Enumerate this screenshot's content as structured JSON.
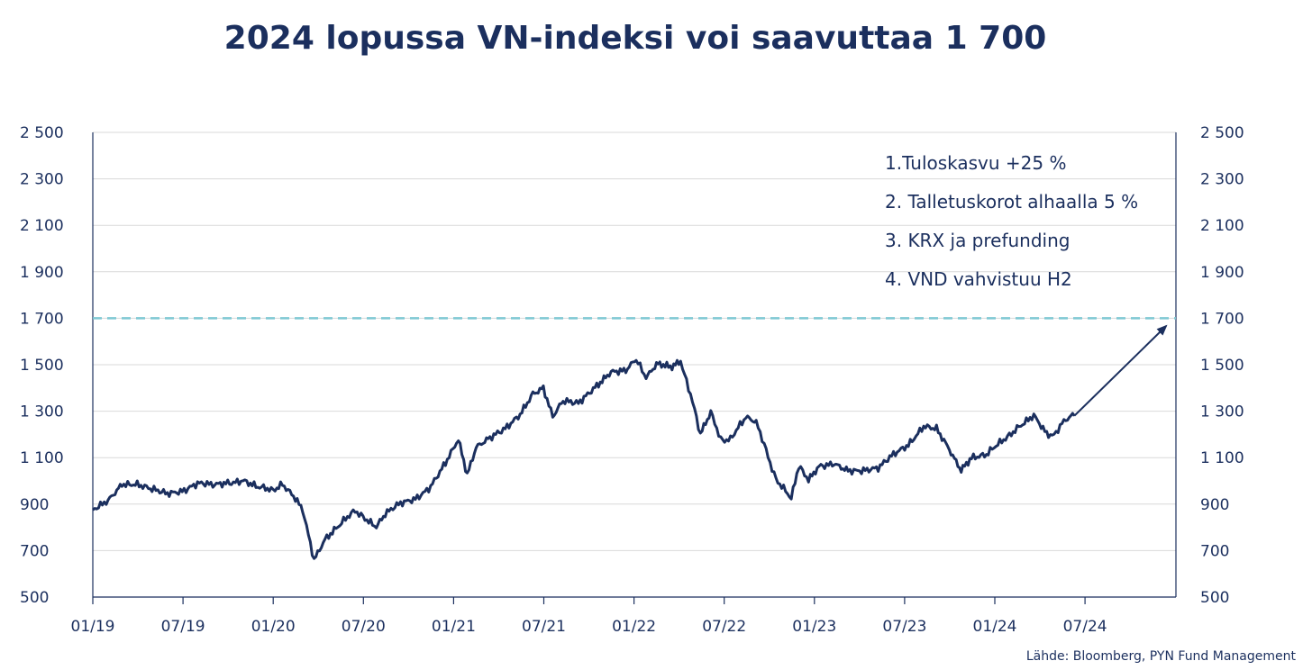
{
  "title": "2024 lopussa VN-indeksi voi saavuttaa 1 700",
  "source": "Lähde: Bloomberg, PYN Fund Management",
  "annotations": [
    "1.Tuloskasvu +25 %",
    "2. Talletuskorot alhaalla 5 %",
    "3. KRX ja prefunding",
    "4. VND vahvistuu H2"
  ],
  "colors": {
    "line": "#1b2f5e",
    "target_line": "#7ec8d3",
    "grid": "#d9d9d9"
  },
  "chart_data": {
    "type": "line",
    "title": "2024 lopussa VN-indeksi voi saavuttaa 1 700",
    "x_tick_labels": [
      "01/19",
      "07/19",
      "01/20",
      "07/20",
      "01/21",
      "07/21",
      "01/22",
      "07/22",
      "01/23",
      "07/23",
      "01/24",
      "07/24"
    ],
    "y_tick_labels": [
      "2 500",
      "2 300",
      "2 100",
      "1 900",
      "1 700",
      "1 500",
      "1 300",
      "1 100",
      "900",
      "700",
      "500"
    ],
    "ylim": [
      500,
      2500
    ],
    "xlim": [
      "2019-01-01",
      "2024-12-31"
    ],
    "grid": true,
    "series": [
      {
        "values": [
          [
            "2019-01-01",
            880
          ],
          [
            "2019-02-01",
            910
          ],
          [
            "2019-03-01",
            990
          ],
          [
            "2019-04-01",
            980
          ],
          [
            "2019-05-01",
            960
          ],
          [
            "2019-06-01",
            950
          ],
          [
            "2019-07-01",
            960
          ],
          [
            "2019-08-01",
            985
          ],
          [
            "2019-09-01",
            985
          ],
          [
            "2019-10-01",
            995
          ],
          [
            "2019-11-01",
            1000
          ],
          [
            "2019-12-01",
            970
          ],
          [
            "2020-01-01",
            960
          ],
          [
            "2020-01-20",
            990
          ],
          [
            "2020-02-15",
            930
          ],
          [
            "2020-03-01",
            880
          ],
          [
            "2020-03-24",
            660
          ],
          [
            "2020-04-15",
            750
          ],
          [
            "2020-05-15",
            810
          ],
          [
            "2020-06-15",
            870
          ],
          [
            "2020-07-01",
            850
          ],
          [
            "2020-07-28",
            800
          ],
          [
            "2020-08-15",
            860
          ],
          [
            "2020-09-15",
            900
          ],
          [
            "2020-10-15",
            920
          ],
          [
            "2020-11-15",
            980
          ],
          [
            "2020-12-15",
            1080
          ],
          [
            "2021-01-10",
            1180
          ],
          [
            "2021-01-28",
            1030
          ],
          [
            "2021-02-15",
            1150
          ],
          [
            "2021-03-15",
            1180
          ],
          [
            "2021-04-15",
            1230
          ],
          [
            "2021-05-15",
            1290
          ],
          [
            "2021-06-10",
            1380
          ],
          [
            "2021-07-01",
            1400
          ],
          [
            "2021-07-20",
            1280
          ],
          [
            "2021-08-10",
            1340
          ],
          [
            "2021-09-10",
            1340
          ],
          [
            "2021-10-10",
            1400
          ],
          [
            "2021-11-15",
            1470
          ],
          [
            "2021-12-15",
            1480
          ],
          [
            "2022-01-05",
            1520
          ],
          [
            "2022-01-25",
            1450
          ],
          [
            "2022-02-15",
            1500
          ],
          [
            "2022-03-15",
            1490
          ],
          [
            "2022-04-05",
            1520
          ],
          [
            "2022-04-25",
            1370
          ],
          [
            "2022-05-15",
            1200
          ],
          [
            "2022-06-05",
            1290
          ],
          [
            "2022-06-25",
            1180
          ],
          [
            "2022-07-15",
            1180
          ],
          [
            "2022-08-15",
            1270
          ],
          [
            "2022-09-05",
            1250
          ],
          [
            "2022-09-25",
            1130
          ],
          [
            "2022-10-15",
            1010
          ],
          [
            "2022-11-15",
            920
          ],
          [
            "2022-11-30",
            1060
          ],
          [
            "2022-12-20",
            1010
          ],
          [
            "2023-01-10",
            1060
          ],
          [
            "2023-02-10",
            1080
          ],
          [
            "2023-03-10",
            1040
          ],
          [
            "2023-04-10",
            1050
          ],
          [
            "2023-05-10",
            1060
          ],
          [
            "2023-06-10",
            1110
          ],
          [
            "2023-07-10",
            1150
          ],
          [
            "2023-08-10",
            1240
          ],
          [
            "2023-09-05",
            1230
          ],
          [
            "2023-10-01",
            1140
          ],
          [
            "2023-10-25",
            1040
          ],
          [
            "2023-11-15",
            1100
          ],
          [
            "2023-12-15",
            1110
          ],
          [
            "2024-01-15",
            1170
          ],
          [
            "2024-02-15",
            1230
          ],
          [
            "2024-03-20",
            1280
          ],
          [
            "2024-04-15",
            1200
          ],
          [
            "2024-04-30",
            1190
          ],
          [
            "2024-05-20",
            1260
          ],
          [
            "2024-06-10",
            1280
          ]
        ]
      }
    ],
    "target": {
      "value": 1700,
      "arrow_from": [
        "2024-06-10",
        1280
      ],
      "arrow_to": [
        "2024-12-31",
        1690
      ]
    }
  }
}
